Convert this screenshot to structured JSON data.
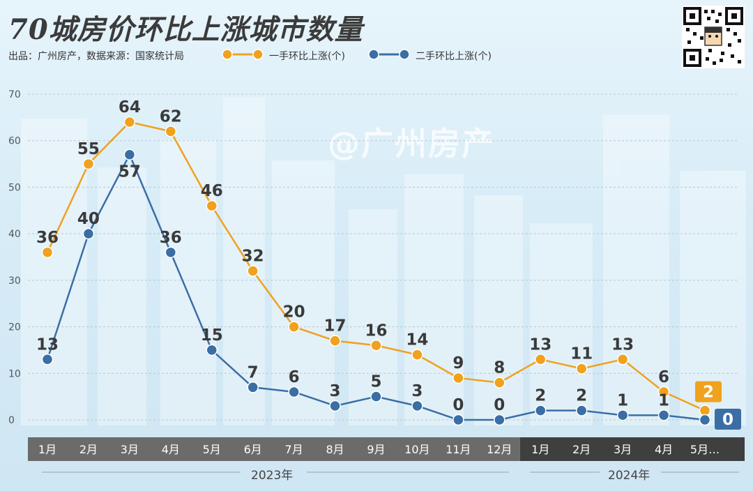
{
  "title": "70城房价环比上涨城市数量",
  "source": "出品：广州房产，数据来源：国家统计局",
  "watermark": "@广州房产",
  "colors": {
    "first_hand": "#f0a11e",
    "second_hand": "#3a6ea5",
    "band_2023": "#6b6b6b",
    "band_2024": "#3f3f3f"
  },
  "icons": {
    "qr": "qr-code-icon"
  },
  "chart_data": {
    "type": "line",
    "title": "70城房价环比上涨城市数量",
    "categories": [
      "1月",
      "2月",
      "3月",
      "4月",
      "5月",
      "6月",
      "7月",
      "8月",
      "9月",
      "10月",
      "11月",
      "12月",
      "1月",
      "2月",
      "3月",
      "4月",
      "5月…"
    ],
    "year_groups": [
      {
        "label": "2023年",
        "count": 12
      },
      {
        "label": "2024年",
        "count": 5
      }
    ],
    "series": [
      {
        "name": "一手环比上涨(个)",
        "values": [
          36,
          55,
          64,
          62,
          46,
          32,
          20,
          17,
          16,
          14,
          9,
          8,
          13,
          11,
          13,
          6,
          2
        ]
      },
      {
        "name": "二手环比上涨(个)",
        "values": [
          13,
          40,
          57,
          36,
          15,
          7,
          6,
          3,
          5,
          3,
          0,
          0,
          2,
          2,
          1,
          1,
          0
        ]
      }
    ],
    "yticks": [
      0,
      10,
      20,
      30,
      40,
      50,
      60,
      70
    ],
    "ylim": [
      0,
      70
    ],
    "grid": true,
    "legend": "top"
  }
}
